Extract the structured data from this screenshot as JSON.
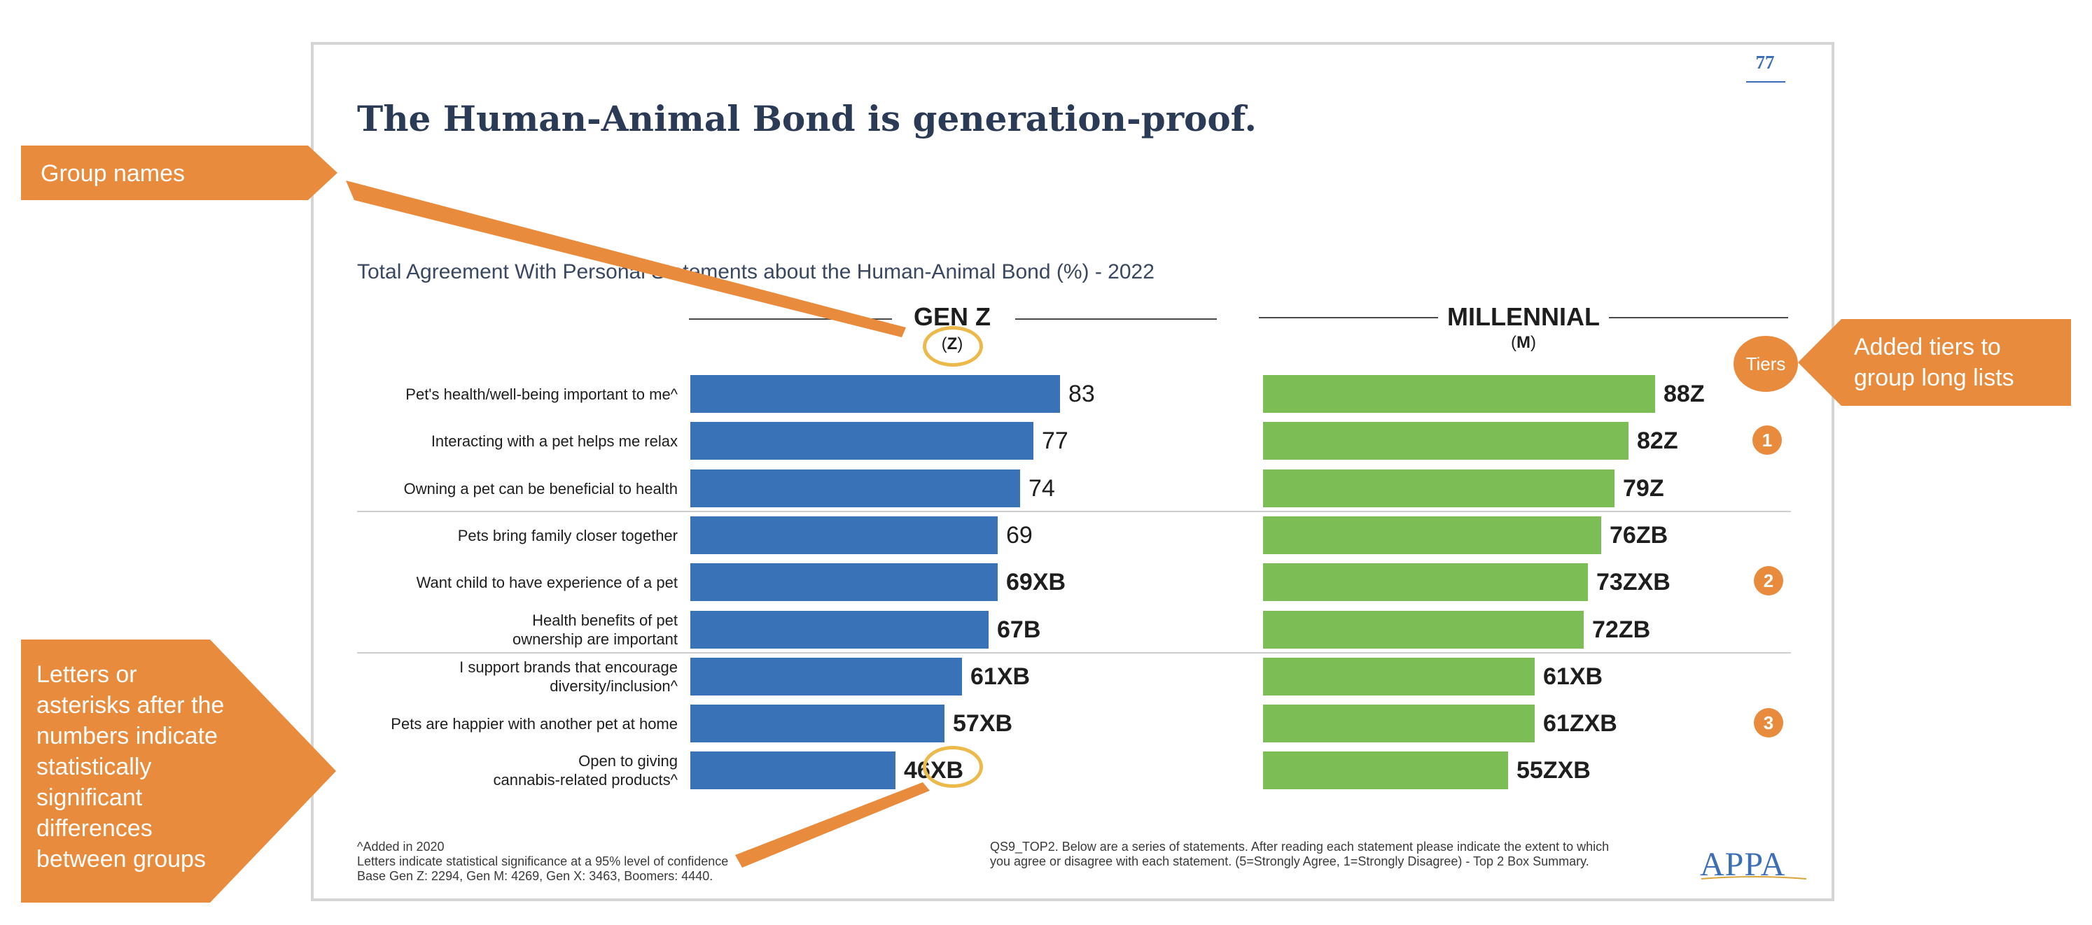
{
  "page_number": "77",
  "title": "The Human-Animal Bond is generation-proof.",
  "chart_data": {
    "type": "bar",
    "orientation": "horizontal",
    "title": "Total Agreement With Personal Statements about the Human-Animal Bond (%) - 2022",
    "categories": [
      "Pet's health/well-being important to me^",
      "Interacting with a pet helps  me relax",
      "Owning a pet can be beneficial to health",
      "Pets bring family closer together",
      "Want child to have experience of a pet",
      "Health benefits of pet\nownership are important",
      "I support brands that encourage\ndiversity/inclusion^",
      "Pets are happier with another pet at home",
      "Open to giving\ncannabis-related products^"
    ],
    "series": [
      {
        "name": "GEN Z",
        "letter": "Z",
        "color": "#3a72b8",
        "values": [
          83,
          77,
          74,
          69,
          69,
          67,
          61,
          57,
          46
        ],
        "labels": [
          "83",
          "77",
          "74",
          "69",
          "69XB",
          "67B",
          "61XB",
          "57XB",
          "46XB"
        ]
      },
      {
        "name": "MILLENNIAL",
        "letter": "M",
        "color": "#7dbd56",
        "values": [
          88,
          82,
          79,
          76,
          73,
          72,
          61,
          61,
          55
        ],
        "labels": [
          "88Z",
          "82Z",
          "79Z",
          "76ZB",
          "73ZXB",
          "72ZB",
          "61XB",
          "61ZXB",
          "55ZXB"
        ]
      }
    ],
    "tiers": [
      "1",
      "2",
      "3"
    ]
  },
  "footnote_left": "^Added in 2020\nLetters indicate statistical significance at a 95% level of confidence\nBase Gen Z: 2294, Gen M: 4269, Gen X: 3463, Boomers: 4440.",
  "footnote_right": "QS9_TOP2. Below are a series of statements. After reading each statement please indicate the extent to which\nyou agree or disagree with each statement. (5=Strongly Agree, 1=Strongly Disagree) - Top 2 Box Summary.",
  "logo": "APPA",
  "annotations": {
    "group_names": "Group names",
    "tiers_circle": "Tiers",
    "tiers_note": "Added tiers to\ngroup long lists",
    "letters_note": "Letters or\nasterisks after the\nnumbers indicate\nstatistically\nsignificant\ndifferences\nbetween groups"
  },
  "colors": {
    "accent": "#e88b3c",
    "ring": "#ecb94b",
    "title": "#2b3a55"
  }
}
